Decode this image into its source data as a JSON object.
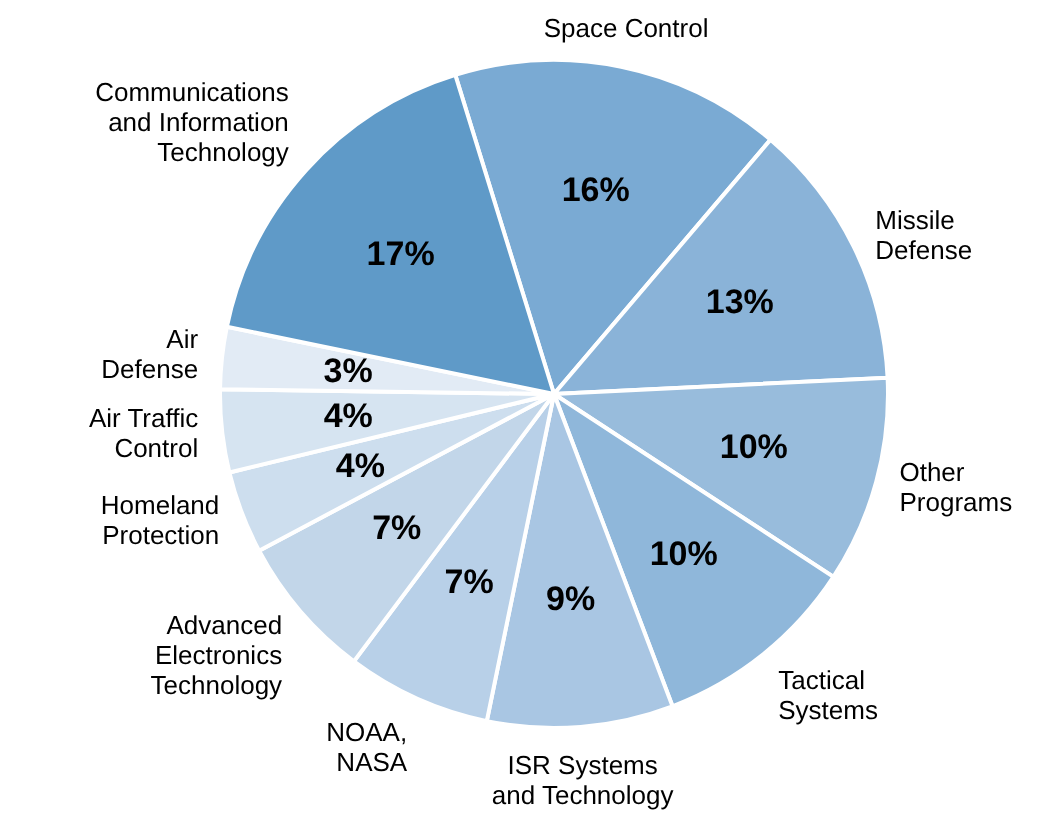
{
  "chart_data": {
    "type": "pie",
    "categories": [
      "Space Control",
      "Missile\nDefense",
      "Other\nPrograms",
      "Tactical\nSystems",
      "ISR Systems\nand Technology",
      "NOAA,\nNASA",
      "Advanced\nElectronics\nTechnology",
      "Homeland\nProtection",
      "Air Traffic\nControl",
      "Air\nDefense",
      "Communications\nand Information\nTechnology"
    ],
    "values": [
      16,
      13,
      10,
      10,
      9,
      7,
      7,
      4,
      4,
      3,
      17
    ],
    "value_labels": [
      "16%",
      "13%",
      "10%",
      "10%",
      "9%",
      "7%",
      "7%",
      "4%",
      "4%",
      "3%",
      "17%"
    ],
    "colors": [
      "#7aaad3",
      "#8ab3d8",
      "#98bcdc",
      "#8fb7da",
      "#a9c6e3",
      "#b8d0e8",
      "#c2d6e9",
      "#cddeee",
      "#d6e4f1",
      "#e2ebf5",
      "#5f9ac8"
    ]
  }
}
